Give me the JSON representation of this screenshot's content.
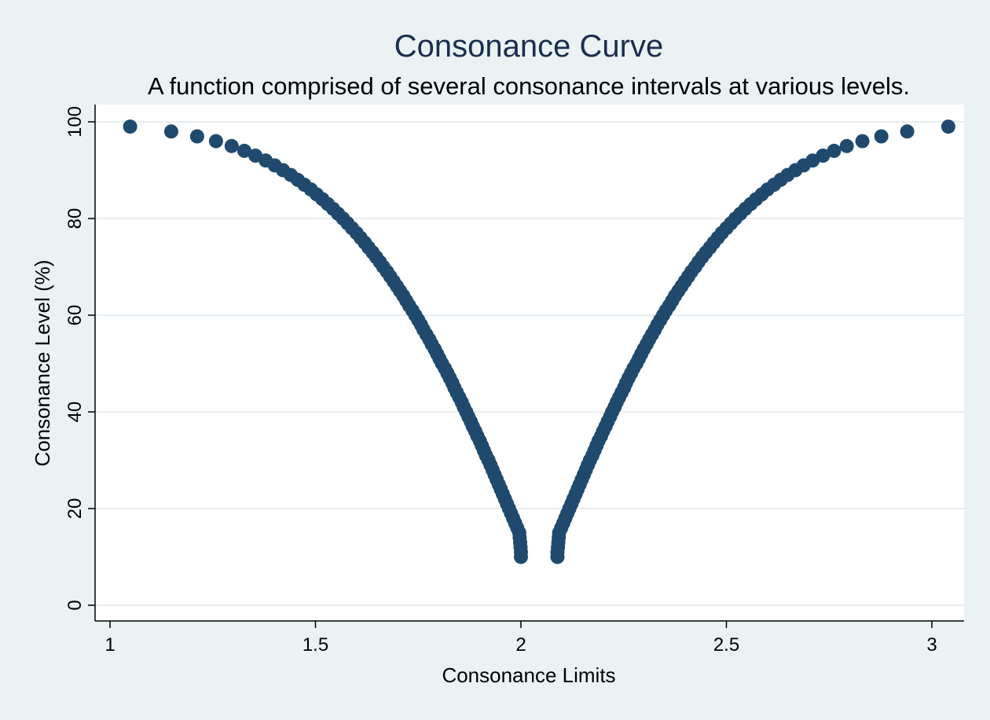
{
  "chart_data": {
    "type": "scatter",
    "title": "Consonance Curve",
    "subtitle": "A function comprised of several consonance intervals at various levels.",
    "xlabel": "Consonance Limits",
    "ylabel": "Consonance Level (%)",
    "xlim": [
      0.96,
      3.08
    ],
    "ylim": [
      -3,
      103
    ],
    "xticks": [
      1,
      1.5,
      2,
      2.5,
      3
    ],
    "xtick_labels": [
      "1",
      "1.5",
      "2",
      "2.5",
      "3"
    ],
    "yticks": [
      0,
      20,
      40,
      60,
      80,
      100
    ],
    "ytick_labels": [
      "0",
      "20",
      "40",
      "60",
      "80",
      "100"
    ],
    "grid": true,
    "legend": "none",
    "colors": {
      "background": "#eaf2f3",
      "plot_background": "#ffffff",
      "marker": "#1f4a6e",
      "gridline": "#e6eef0",
      "title": "#1a2e4f"
    },
    "series": [
      {
        "lower_limits": [
          [
            1.049,
            99
          ],
          [
            1.149,
            98
          ],
          [
            1.212,
            97
          ],
          [
            1.258,
            96
          ],
          [
            1.296,
            95
          ],
          [
            1.327,
            94
          ],
          [
            1.354,
            93
          ],
          [
            1.379,
            92
          ],
          [
            1.401,
            91
          ],
          [
            1.421,
            90
          ],
          [
            1.44,
            89
          ],
          [
            1.457,
            88
          ],
          [
            1.473,
            87
          ],
          [
            1.489,
            86
          ],
          [
            1.503,
            85
          ],
          [
            1.517,
            84
          ],
          [
            1.53,
            83
          ],
          [
            1.543,
            82
          ],
          [
            1.555,
            81
          ],
          [
            1.567,
            80
          ],
          [
            1.578,
            79
          ],
          [
            1.589,
            78
          ],
          [
            1.6,
            77
          ],
          [
            1.61,
            76
          ],
          [
            1.62,
            75
          ],
          [
            1.629,
            74
          ],
          [
            1.639,
            73
          ],
          [
            1.648,
            72
          ],
          [
            1.657,
            71
          ],
          [
            1.665,
            70
          ],
          [
            1.674,
            69
          ],
          [
            1.682,
            68
          ],
          [
            1.69,
            67
          ],
          [
            1.698,
            66
          ],
          [
            1.706,
            65
          ],
          [
            1.714,
            64
          ],
          [
            1.721,
            63
          ],
          [
            1.728,
            62
          ],
          [
            1.736,
            61
          ],
          [
            1.743,
            60
          ],
          [
            1.75,
            59
          ],
          [
            1.757,
            58
          ],
          [
            1.763,
            57
          ],
          [
            1.77,
            56
          ],
          [
            1.777,
            55
          ],
          [
            1.783,
            54
          ],
          [
            1.79,
            53
          ],
          [
            1.796,
            52
          ],
          [
            1.802,
            51
          ],
          [
            1.808,
            50
          ],
          [
            1.815,
            49
          ],
          [
            1.821,
            48
          ],
          [
            1.827,
            47
          ],
          [
            1.833,
            46
          ],
          [
            1.838,
            45
          ],
          [
            1.844,
            44
          ],
          [
            1.85,
            43
          ],
          [
            1.856,
            42
          ],
          [
            1.861,
            41
          ],
          [
            1.867,
            40
          ],
          [
            1.872,
            39
          ],
          [
            1.878,
            38
          ],
          [
            1.883,
            37
          ],
          [
            1.889,
            36
          ],
          [
            1.894,
            35
          ],
          [
            1.9,
            34
          ],
          [
            1.905,
            33
          ],
          [
            1.91,
            32
          ],
          [
            1.915,
            31
          ],
          [
            1.921,
            30
          ],
          [
            1.926,
            29
          ],
          [
            1.931,
            28
          ],
          [
            1.936,
            27
          ],
          [
            1.941,
            26
          ],
          [
            1.946,
            25
          ],
          [
            1.951,
            24
          ],
          [
            1.956,
            23
          ],
          [
            1.961,
            22
          ],
          [
            1.966,
            21
          ],
          [
            1.971,
            20
          ],
          [
            1.976,
            19
          ],
          [
            1.981,
            18
          ],
          [
            1.986,
            17
          ],
          [
            1.991,
            16
          ],
          [
            1.996,
            15
          ],
          [
            1.997,
            14
          ],
          [
            1.998,
            13
          ],
          [
            1.999,
            12
          ],
          [
            2.0,
            11
          ],
          [
            2.0,
            10
          ]
        ],
        "upper_limits": [
          [
            3.04,
            99
          ],
          [
            2.94,
            98
          ],
          [
            2.877,
            97
          ],
          [
            2.831,
            96
          ],
          [
            2.793,
            95
          ],
          [
            2.762,
            94
          ],
          [
            2.735,
            93
          ],
          [
            2.71,
            92
          ],
          [
            2.688,
            91
          ],
          [
            2.668,
            90
          ],
          [
            2.649,
            89
          ],
          [
            2.632,
            88
          ],
          [
            2.616,
            87
          ],
          [
            2.6,
            86
          ],
          [
            2.586,
            85
          ],
          [
            2.572,
            84
          ],
          [
            2.559,
            83
          ],
          [
            2.546,
            82
          ],
          [
            2.534,
            81
          ],
          [
            2.522,
            80
          ],
          [
            2.511,
            79
          ],
          [
            2.5,
            78
          ],
          [
            2.489,
            77
          ],
          [
            2.479,
            76
          ],
          [
            2.469,
            75
          ],
          [
            2.46,
            74
          ],
          [
            2.45,
            73
          ],
          [
            2.441,
            72
          ],
          [
            2.432,
            71
          ],
          [
            2.424,
            70
          ],
          [
            2.415,
            69
          ],
          [
            2.407,
            68
          ],
          [
            2.399,
            67
          ],
          [
            2.391,
            66
          ],
          [
            2.383,
            65
          ],
          [
            2.375,
            64
          ],
          [
            2.368,
            63
          ],
          [
            2.361,
            62
          ],
          [
            2.353,
            61
          ],
          [
            2.346,
            60
          ],
          [
            2.339,
            59
          ],
          [
            2.332,
            58
          ],
          [
            2.326,
            57
          ],
          [
            2.319,
            56
          ],
          [
            2.312,
            55
          ],
          [
            2.306,
            54
          ],
          [
            2.299,
            53
          ],
          [
            2.293,
            52
          ],
          [
            2.287,
            51
          ],
          [
            2.281,
            50
          ],
          [
            2.274,
            49
          ],
          [
            2.268,
            48
          ],
          [
            2.262,
            47
          ],
          [
            2.256,
            46
          ],
          [
            2.251,
            45
          ],
          [
            2.245,
            44
          ],
          [
            2.239,
            43
          ],
          [
            2.233,
            42
          ],
          [
            2.228,
            41
          ],
          [
            2.222,
            40
          ],
          [
            2.217,
            39
          ],
          [
            2.211,
            38
          ],
          [
            2.206,
            37
          ],
          [
            2.2,
            36
          ],
          [
            2.195,
            35
          ],
          [
            2.189,
            34
          ],
          [
            2.184,
            33
          ],
          [
            2.179,
            32
          ],
          [
            2.174,
            31
          ],
          [
            2.168,
            30
          ],
          [
            2.163,
            29
          ],
          [
            2.158,
            28
          ],
          [
            2.153,
            27
          ],
          [
            2.148,
            26
          ],
          [
            2.143,
            25
          ],
          [
            2.138,
            24
          ],
          [
            2.133,
            23
          ],
          [
            2.128,
            22
          ],
          [
            2.123,
            21
          ],
          [
            2.118,
            20
          ],
          [
            2.113,
            19
          ],
          [
            2.108,
            18
          ],
          [
            2.103,
            17
          ],
          [
            2.098,
            16
          ],
          [
            2.093,
            15
          ],
          [
            2.092,
            14
          ],
          [
            2.091,
            13
          ],
          [
            2.09,
            12
          ],
          [
            2.089,
            11
          ],
          [
            2.089,
            10
          ]
        ]
      }
    ]
  }
}
